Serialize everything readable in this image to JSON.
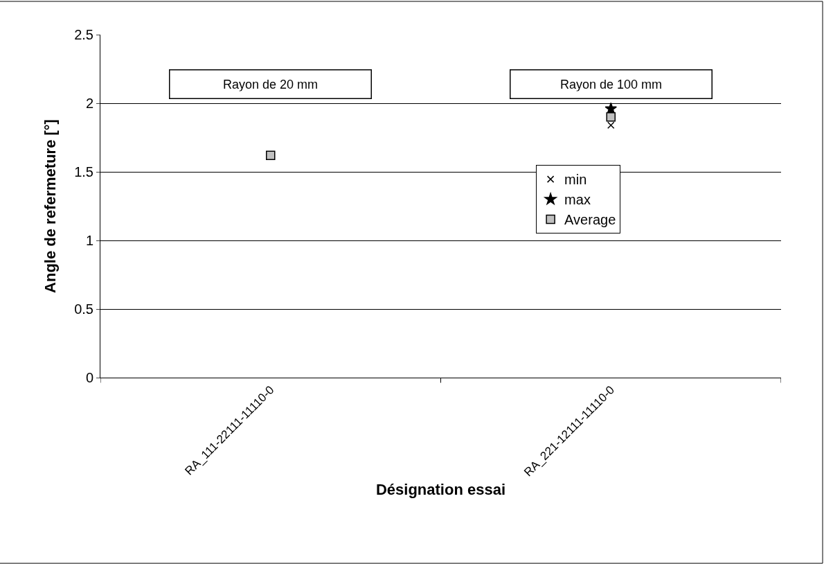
{
  "chart_data": {
    "type": "scatter",
    "xlabel": "Désignation essai",
    "ylabel": "Angle de refermeture [°]",
    "categories": [
      "RA_111-22111-11110-0",
      "RA_221-12111-11110-0"
    ],
    "series": [
      {
        "name": "min",
        "color": "#000000",
        "marker": "cross",
        "values": [
          null,
          1.84
        ]
      },
      {
        "name": "max",
        "color": "#000000",
        "marker": "star",
        "values": [
          null,
          1.96
        ]
      },
      {
        "name": "Average",
        "color": "#c0c0c0",
        "marker": "square",
        "values": [
          1.62,
          1.9
        ]
      }
    ],
    "ylim": [
      0,
      2.5
    ],
    "yticks": [
      0,
      0.5,
      1,
      1.5,
      2,
      2.5
    ],
    "grid": "y",
    "legend": "right",
    "annotations": [
      "Rayon de 20 mm",
      "Rayon de 100 mm"
    ]
  }
}
